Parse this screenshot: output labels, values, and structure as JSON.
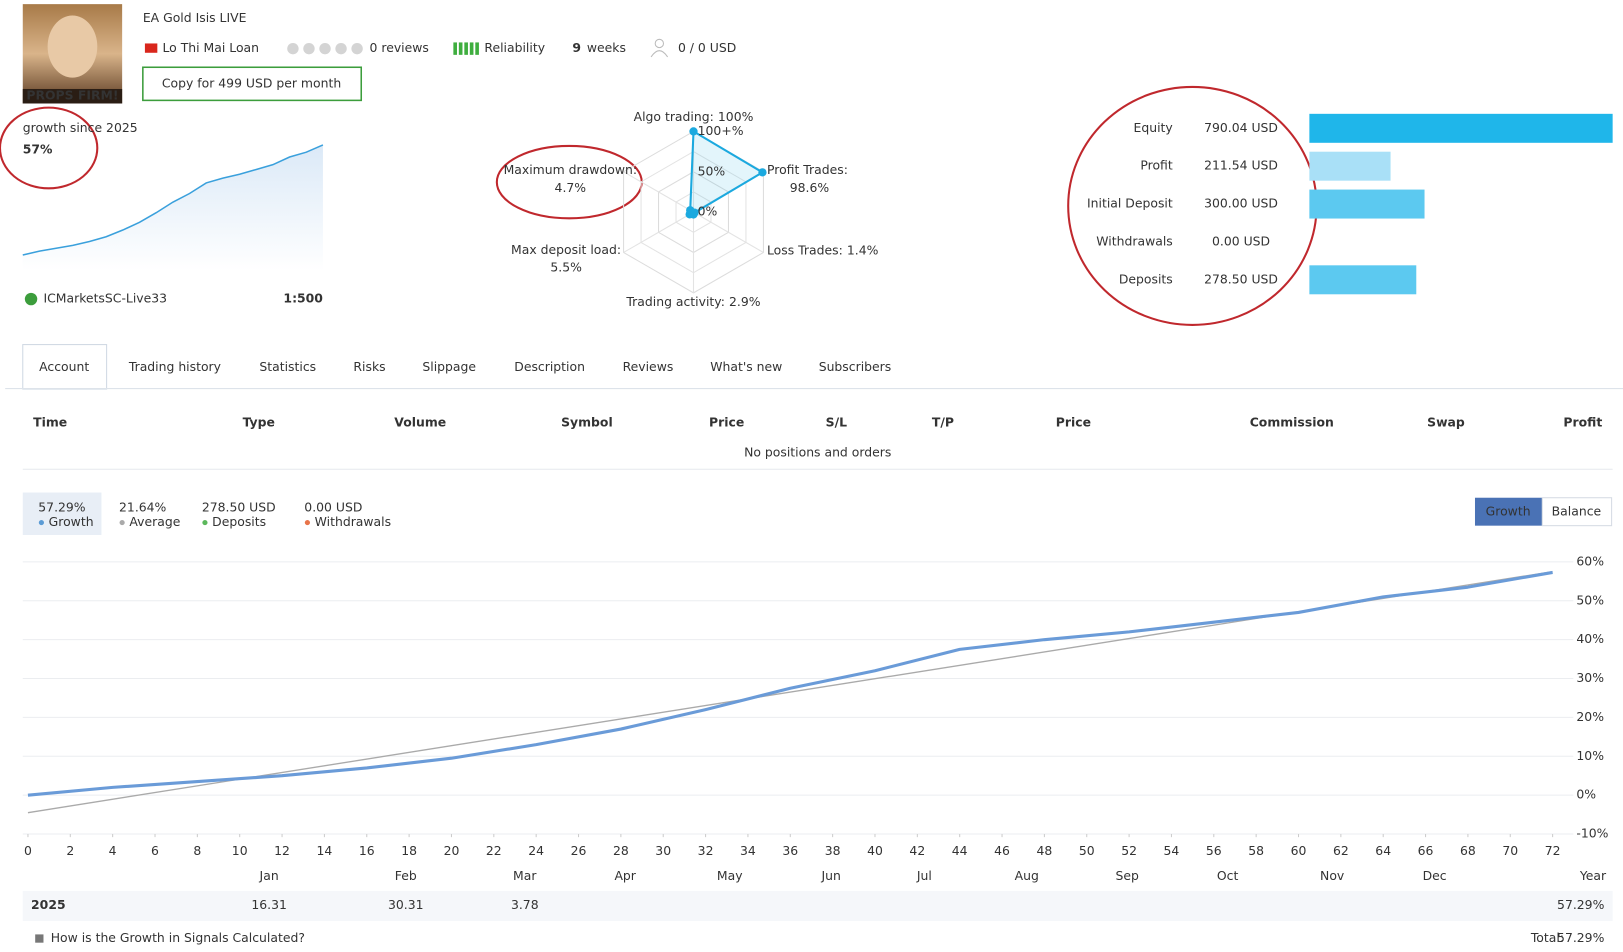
{
  "header": {
    "title": "EA Gold Isis LIVE",
    "avatar_caption": "PROPS FIRM!",
    "author": "Lo Thi Mai Loan",
    "reviews": "0 reviews",
    "reliability": "Reliability",
    "weeks_count": "9",
    "weeks": "weeks",
    "subscribers": "0 / 0 USD",
    "copy_button": "Copy for 499 USD per month"
  },
  "growth_summary": {
    "label": "growth since 2025",
    "value": "57%"
  },
  "broker": {
    "server": "ICMarketsSC-Live33",
    "leverage": "1:500"
  },
  "radar": {
    "color": "#1ba9df",
    "ticks": [
      {
        "value": 100,
        "label": "100+%"
      },
      {
        "value": 50,
        "label": "50%"
      },
      {
        "value": 0,
        "label": "0%"
      }
    ],
    "axes": [
      {
        "label": "Algo trading:",
        "value": 100,
        "value_label": "100%"
      },
      {
        "label": "Profit Trades:",
        "value": 98.6,
        "value_label": "98.6%"
      },
      {
        "label": "Loss Trades:",
        "value": 1.4,
        "value_label": "1.4%"
      },
      {
        "label": "Trading activity:",
        "value": 2.9,
        "value_label": "2.9%"
      },
      {
        "label": "Max deposit load:",
        "value": 5.5,
        "value_label": "5.5%"
      },
      {
        "label": "Maximum drawdown:",
        "value": 4.7,
        "value_label": "4.7%"
      }
    ]
  },
  "account": {
    "items": [
      {
        "label": "Equity",
        "value": 790.04,
        "value_label": "790.04 USD",
        "color": "#1fb6ea"
      },
      {
        "label": "Profit",
        "value": 211.54,
        "value_label": "211.54 USD",
        "color": "#a9e0f7"
      },
      {
        "label": "Initial Deposit",
        "value": 300.0,
        "value_label": "300.00 USD",
        "color": "#5cc9f0"
      },
      {
        "label": "Withdrawals",
        "value": 0.0,
        "value_label": "0.00 USD",
        "color": "#5cc9f0"
      },
      {
        "label": "Deposits",
        "value": 278.5,
        "value_label": "278.50 USD",
        "color": "#5cc9f0"
      }
    ]
  },
  "tabs": [
    "Account",
    "Trading history",
    "Statistics",
    "Risks",
    "Slippage",
    "Description",
    "Reviews",
    "What's new",
    "Subscribers"
  ],
  "positions_table": {
    "columns": [
      "Time",
      "Type",
      "Volume",
      "Symbol",
      "Price",
      "S/L",
      "T/P",
      "Price",
      "Commission",
      "Swap",
      "Profit"
    ],
    "empty_message": "No positions and orders"
  },
  "growth_chart": {
    "type": "line",
    "summary": [
      {
        "value": "57.29%",
        "label": "Growth",
        "color": "#5b9bd5"
      },
      {
        "value": "21.64%",
        "label": "Average",
        "color": "#aaaaaa"
      },
      {
        "value": "278.50 USD",
        "label": "Deposits",
        "color": "#5cb85c"
      },
      {
        "value": "0.00 USD",
        "label": "Withdrawals",
        "color": "#e8744a"
      }
    ],
    "buttons": [
      "Growth",
      "Balance"
    ],
    "x": [
      0,
      4,
      8,
      12,
      16,
      20,
      24,
      28,
      32,
      36,
      40,
      44,
      48,
      52,
      56,
      60,
      64,
      68,
      72
    ],
    "series": [
      {
        "color": "#6a9bd8",
        "values": [
          0,
          2,
          3.5,
          5,
          7,
          9.5,
          13,
          17,
          22,
          27.5,
          32,
          37.5,
          40,
          42,
          44.5,
          47,
          51,
          53.5,
          57.29
        ]
      }
    ],
    "trend": {
      "color": "#aaaaaa",
      "x": [
        0,
        72
      ],
      "values": [
        -4.5,
        57.5
      ]
    },
    "xlim": [
      0,
      72
    ],
    "xticks": [
      0,
      2,
      4,
      6,
      8,
      10,
      12,
      14,
      16,
      18,
      20,
      22,
      24,
      26,
      28,
      30,
      32,
      34,
      36,
      38,
      40,
      42,
      44,
      46,
      48,
      50,
      52,
      54,
      56,
      58,
      60,
      62,
      64,
      66,
      68,
      70,
      72
    ],
    "ylim": [
      -10,
      60
    ],
    "yticks": [
      {
        "value": -10,
        "label": "-10%"
      },
      {
        "value": 0,
        "label": "0%"
      },
      {
        "value": 10,
        "label": "10%"
      },
      {
        "value": 20,
        "label": "20%"
      },
      {
        "value": 30,
        "label": "30%"
      },
      {
        "value": 40,
        "label": "40%"
      },
      {
        "value": 50,
        "label": "50%"
      },
      {
        "value": 60,
        "label": "60%"
      }
    ],
    "grid": true,
    "months": [
      "Jan",
      "Feb",
      "Mar",
      "Apr",
      "May",
      "Jun",
      "Jul",
      "Aug",
      "Sep",
      "Oct",
      "Nov",
      "Dec",
      "Year"
    ],
    "yearly": {
      "year": "2025",
      "values": [
        "16.31",
        "30.31",
        "3.78",
        null,
        null,
        null,
        null,
        null,
        null,
        null,
        null,
        null,
        "57.29%"
      ]
    }
  },
  "footer": {
    "link": "How is the Growth in Signals Calculated?",
    "total_label": "Total:",
    "total_value": "57.29%"
  }
}
